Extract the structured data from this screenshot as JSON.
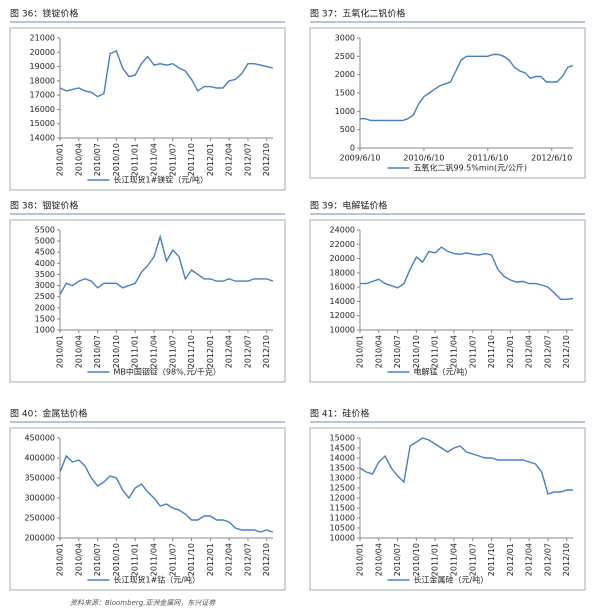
{
  "chart_data": [
    {
      "type": "line",
      "title": "图 36：镁锭价格",
      "xlabel_rotate": true,
      "categories": [
        "2010/01",
        null,
        null,
        "2010/04",
        null,
        null,
        "2010/07",
        null,
        null,
        "2010/10",
        null,
        null,
        "2011/01",
        null,
        null,
        "2011/04",
        null,
        null,
        "2011/07",
        null,
        null,
        "2011/10",
        null,
        null,
        "2012/01",
        null,
        null,
        "2012/04",
        null,
        null,
        "2012/07",
        null,
        null,
        "2012/10",
        null
      ],
      "series": [
        {
          "name": "长江现货1#镁锭（元/吨）",
          "color": "#4a7ebb",
          "values": [
            17500,
            17300,
            17400,
            17500,
            17300,
            17200,
            16900,
            17100,
            19900,
            20100,
            18900,
            18300,
            18400,
            19200,
            19700,
            19100,
            19200,
            19100,
            19200,
            18900,
            18700,
            18100,
            17300,
            17600,
            17600,
            17500,
            17500,
            18000,
            18100,
            18500,
            19200,
            19200,
            19100,
            19000,
            18900
          ]
        }
      ],
      "ylim": [
        14000,
        21000
      ],
      "yticks": [
        14000,
        15000,
        16000,
        17000,
        18000,
        19000,
        20000,
        21000
      ]
    },
    {
      "type": "line",
      "title": "图 37：五氧化二钒价格",
      "xlabel_rotate": false,
      "categories": [
        "2009/6/10",
        null,
        null,
        null,
        null,
        null,
        null,
        null,
        null,
        null,
        null,
        null,
        "2010/6/10",
        null,
        null,
        null,
        null,
        null,
        null,
        null,
        null,
        null,
        null,
        null,
        "2011/6/10",
        null,
        null,
        null,
        null,
        null,
        null,
        null,
        null,
        null,
        null,
        null,
        "2012/6/10",
        null,
        null,
        null,
        null
      ],
      "series": [
        {
          "name": "五氧化二钒99.5%min(元/公斤)",
          "color": "#4a7ebb",
          "values": [
            800,
            800,
            750,
            750,
            750,
            750,
            750,
            750,
            750,
            800,
            900,
            1200,
            1400,
            1500,
            1600,
            1700,
            1750,
            1800,
            2100,
            2400,
            2500,
            2500,
            2500,
            2500,
            2500,
            2550,
            2550,
            2500,
            2400,
            2200,
            2100,
            2050,
            1900,
            1950,
            1950,
            1800,
            1800,
            1800,
            1950,
            2200,
            2250
          ]
        }
      ],
      "ylim": [
        0,
        3000
      ],
      "yticks": [
        0,
        500,
        1000,
        1500,
        2000,
        2500,
        3000
      ]
    },
    {
      "type": "line",
      "title": "图 38：铟锭价格",
      "xlabel_rotate": true,
      "categories": [
        "2010/01",
        null,
        null,
        "2010/04",
        null,
        null,
        "2010/07",
        null,
        null,
        "2010/10",
        null,
        null,
        "2011/01",
        null,
        null,
        "2011/04",
        null,
        null,
        "2011/07",
        null,
        null,
        "2011/10",
        null,
        null,
        "2012/01",
        null,
        null,
        "2012/04",
        null,
        null,
        "2012/07",
        null,
        null,
        "2012/10",
        null
      ],
      "series": [
        {
          "name": "MB中国铟锭（98%,元/千克）",
          "color": "#4a7ebb",
          "values": [
            2600,
            3100,
            3000,
            3200,
            3300,
            3200,
            2900,
            3100,
            3100,
            3100,
            2900,
            3000,
            3100,
            3600,
            3900,
            4300,
            5200,
            4100,
            4600,
            4300,
            3300,
            3700,
            3500,
            3300,
            3300,
            3200,
            3200,
            3300,
            3200,
            3200,
            3200,
            3300,
            3300,
            3300,
            3200
          ]
        }
      ],
      "ylim": [
        1000,
        5500
      ],
      "yticks": [
        1000,
        1500,
        2000,
        2500,
        3000,
        3500,
        4000,
        4500,
        5000,
        5500
      ]
    },
    {
      "type": "line",
      "title": "图 39：电解锰价格",
      "xlabel_rotate": true,
      "categories": [
        "2010/01",
        null,
        null,
        "2010/04",
        null,
        null,
        "2010/07",
        null,
        null,
        "2010/10",
        null,
        null,
        "2011/01",
        null,
        null,
        "2011/04",
        null,
        null,
        "2011/07",
        null,
        null,
        "2011/10",
        null,
        null,
        "2012/01",
        null,
        null,
        "2012/04",
        null,
        null,
        "2012/07",
        null,
        null,
        "2012/10",
        null
      ],
      "series": [
        {
          "name": "电解锰（元/吨）",
          "color": "#4a7ebb",
          "values": [
            16500,
            16500,
            16800,
            17100,
            16500,
            16200,
            15900,
            16500,
            18500,
            20200,
            19500,
            21000,
            20800,
            21600,
            21000,
            20700,
            20600,
            20800,
            20600,
            20500,
            20700,
            20500,
            18500,
            17500,
            17000,
            16700,
            16800,
            16500,
            16500,
            16300,
            16000,
            15200,
            14300,
            14300,
            14400
          ]
        }
      ],
      "ylim": [
        10000,
        24000
      ],
      "yticks": [
        10000,
        12000,
        14000,
        16000,
        18000,
        20000,
        22000,
        24000
      ]
    },
    {
      "type": "line",
      "title": "图 40：金属钴价格",
      "xlabel_rotate": true,
      "categories": [
        "2010/01",
        null,
        null,
        "2010/04",
        null,
        null,
        "2010/07",
        null,
        null,
        "2010/10",
        null,
        null,
        "2011/01",
        null,
        null,
        "2011/04",
        null,
        null,
        "2011/07",
        null,
        null,
        "2011/10",
        null,
        null,
        "2012/01",
        null,
        null,
        "2012/04",
        null,
        null,
        "2012/07",
        null,
        null,
        "2012/10",
        null
      ],
      "series": [
        {
          "name": "长江现货1#钴（元/吨）",
          "color": "#4a7ebb",
          "values": [
            365000,
            405000,
            390000,
            395000,
            380000,
            350000,
            330000,
            340000,
            355000,
            350000,
            320000,
            300000,
            325000,
            335000,
            315000,
            300000,
            280000,
            285000,
            275000,
            270000,
            260000,
            245000,
            245000,
            255000,
            255000,
            245000,
            245000,
            240000,
            225000,
            220000,
            220000,
            220000,
            215000,
            220000,
            215000
          ]
        }
      ],
      "ylim": [
        200000,
        450000
      ],
      "yticks": [
        200000,
        250000,
        300000,
        350000,
        400000,
        450000
      ]
    },
    {
      "type": "line",
      "title": "图 41：硅价格",
      "xlabel_rotate": true,
      "categories": [
        "2010/01",
        null,
        null,
        "2010/04",
        null,
        null,
        "2010/07",
        null,
        null,
        "2010/10",
        null,
        null,
        "2011/01",
        null,
        null,
        "2011/04",
        null,
        null,
        "2011/07",
        null,
        null,
        "2011/10",
        null,
        null,
        "2012/01",
        null,
        null,
        "2012/04",
        null,
        null,
        "2012/07",
        null,
        null,
        "2012/10",
        null
      ],
      "series": [
        {
          "name": "长江金属硅（元/吨）",
          "color": "#4a7ebb",
          "values": [
            13500,
            13300,
            13200,
            13800,
            14100,
            13500,
            13100,
            12800,
            14600,
            14800,
            15000,
            14900,
            14700,
            14500,
            14300,
            14500,
            14600,
            14300,
            14200,
            14100,
            14000,
            14000,
            13900,
            13900,
            13900,
            13900,
            13900,
            13800,
            13700,
            13300,
            12200,
            12300,
            12300,
            12400,
            12400
          ]
        }
      ],
      "ylim": [
        10000,
        15000
      ],
      "yticks": [
        10000,
        10500,
        11000,
        11500,
        12000,
        12500,
        13000,
        13500,
        14000,
        14500,
        15000
      ]
    }
  ],
  "source": "资料来源：Bloomberg,亚洲金属网，东兴证券"
}
